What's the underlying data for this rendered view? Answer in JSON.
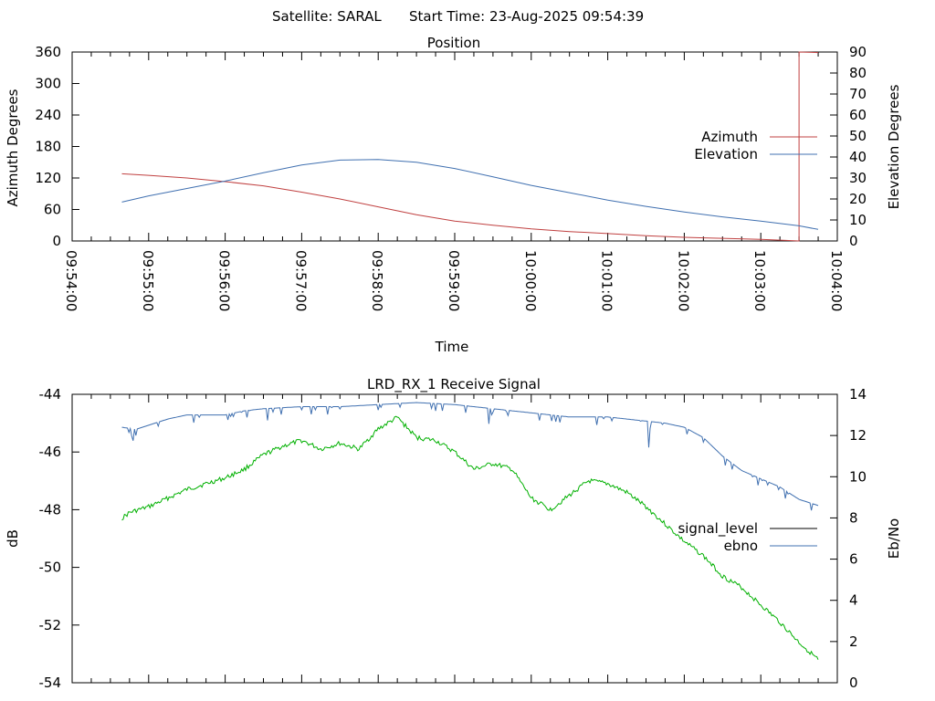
{
  "header": {
    "satellite": "Satellite: SARAL",
    "start_time": "Start Time: 23-Aug-2025 09:54:39"
  },
  "chart_data": [
    {
      "type": "line",
      "title": "Position",
      "xlabel": "Time",
      "ylabel": "Azimuth Degrees",
      "y2label": "Elevation Degrees",
      "xlim": [
        "09:54:00",
        "10:04:00"
      ],
      "ylim": [
        0,
        360
      ],
      "y2lim": [
        0,
        90
      ],
      "x_ticks": [
        "09:54:00",
        "09:55:00",
        "09:56:00",
        "09:57:00",
        "09:58:00",
        "09:59:00",
        "10:00:00",
        "10:01:00",
        "10:02:00",
        "10:03:00",
        "10:04:00"
      ],
      "y_ticks": [
        "0",
        "60",
        "120",
        "180",
        "240",
        "300",
        "360"
      ],
      "y2_ticks": [
        "0",
        "10",
        "20",
        "30",
        "40",
        "50",
        "60",
        "70",
        "80",
        "90"
      ],
      "legend_position": "right",
      "series": [
        {
          "name": "Azimuth",
          "axis": "y",
          "color": "#c04040",
          "x": [
            "09:54:39",
            "09:55:00",
            "09:55:30",
            "09:56:00",
            "09:56:30",
            "09:57:00",
            "09:57:30",
            "09:58:00",
            "09:58:30",
            "09:59:00",
            "09:59:30",
            "10:00:00",
            "10:00:30",
            "10:01:00",
            "10:01:30",
            "10:02:00",
            "10:02:30",
            "10:03:00",
            "10:03:20",
            "10:03:30",
            "10:03:30",
            "10:03:45"
          ],
          "values": [
            128,
            125,
            120,
            113,
            105,
            93,
            80,
            65,
            50,
            38,
            30,
            23,
            18,
            14,
            10,
            7,
            5,
            3,
            1,
            0,
            360,
            359
          ]
        },
        {
          "name": "Elevation",
          "axis": "y2",
          "color": "#4070b0",
          "x": [
            "09:54:39",
            "09:55:00",
            "09:55:30",
            "09:56:00",
            "09:56:30",
            "09:57:00",
            "09:57:30",
            "09:58:00",
            "09:58:30",
            "09:59:00",
            "09:59:30",
            "10:00:00",
            "10:00:30",
            "10:01:00",
            "10:01:30",
            "10:02:00",
            "10:02:30",
            "10:03:00",
            "10:03:30",
            "10:03:45"
          ],
          "values": [
            18.5,
            21.5,
            25,
            28.5,
            32.5,
            36.2,
            38.5,
            38.8,
            37.5,
            34.5,
            30.5,
            26.5,
            23,
            19.5,
            16.5,
            13.8,
            11.5,
            9.5,
            7.2,
            5.5
          ]
        }
      ]
    },
    {
      "type": "line",
      "title": "LRD_RX_1 Receive Signal",
      "xlabel": "",
      "ylabel": "dB",
      "y2label": "Eb/No",
      "xlim": [
        "09:54:00",
        "10:04:00"
      ],
      "ylim": [
        -54,
        -44
      ],
      "y2lim": [
        0,
        14
      ],
      "y_ticks": [
        "-44",
        "-46",
        "-48",
        "-50",
        "-52",
        "-54"
      ],
      "y2_ticks": [
        "0",
        "2",
        "4",
        "6",
        "8",
        "10",
        "12",
        "14"
      ],
      "legend_position": "right",
      "series": [
        {
          "name": "signal_level",
          "axis": "y",
          "color": "#00b000",
          "x": [
            "09:54:39",
            "09:54:45",
            "09:55:00",
            "09:55:15",
            "09:55:30",
            "09:56:00",
            "09:56:15",
            "09:56:30",
            "09:56:45",
            "09:57:00",
            "09:57:15",
            "09:57:30",
            "09:57:45",
            "09:58:00",
            "09:58:15",
            "09:58:30",
            "09:58:45",
            "09:59:00",
            "09:59:15",
            "09:59:30",
            "09:59:45",
            "10:00:00",
            "10:00:15",
            "10:00:30",
            "10:00:45",
            "10:01:00",
            "10:01:15",
            "10:01:30",
            "10:01:45",
            "10:02:00",
            "10:02:15",
            "10:02:30",
            "10:02:45",
            "10:03:00",
            "10:03:15",
            "10:03:30",
            "10:03:45"
          ],
          "values": [
            -48.3,
            -48.1,
            -47.9,
            -47.6,
            -47.3,
            -46.9,
            -46.6,
            -46.1,
            -45.8,
            -45.6,
            -45.9,
            -45.7,
            -45.9,
            -45.2,
            -44.8,
            -45.5,
            -45.6,
            -46.0,
            -46.6,
            -46.4,
            -46.6,
            -47.6,
            -48.0,
            -47.5,
            -47.0,
            -47.1,
            -47.4,
            -47.9,
            -48.5,
            -49.1,
            -49.6,
            -50.3,
            -50.7,
            -51.3,
            -51.9,
            -52.6,
            -53.2
          ]
        },
        {
          "name": "ebno",
          "axis": "y2",
          "color": "#4070b0",
          "x": [
            "09:54:39",
            "09:54:50",
            "09:55:00",
            "09:55:15",
            "09:55:30",
            "09:56:00",
            "09:56:15",
            "09:56:30",
            "09:57:00",
            "09:57:30",
            "09:58:00",
            "09:58:30",
            "09:59:00",
            "09:59:30",
            "10:00:00",
            "10:00:30",
            "10:01:00",
            "10:01:30",
            "10:01:45",
            "10:02:00",
            "10:02:15",
            "10:02:30",
            "10:02:45",
            "10:03:00",
            "10:03:15",
            "10:03:30",
            "10:03:45"
          ],
          "values": [
            12.4,
            12.3,
            12.5,
            12.8,
            13.0,
            13.0,
            13.2,
            13.3,
            13.4,
            13.4,
            13.5,
            13.6,
            13.5,
            13.3,
            13.1,
            12.9,
            12.9,
            12.7,
            12.6,
            12.4,
            11.9,
            11.0,
            10.3,
            9.9,
            9.5,
            8.9,
            8.6
          ]
        }
      ]
    }
  ]
}
